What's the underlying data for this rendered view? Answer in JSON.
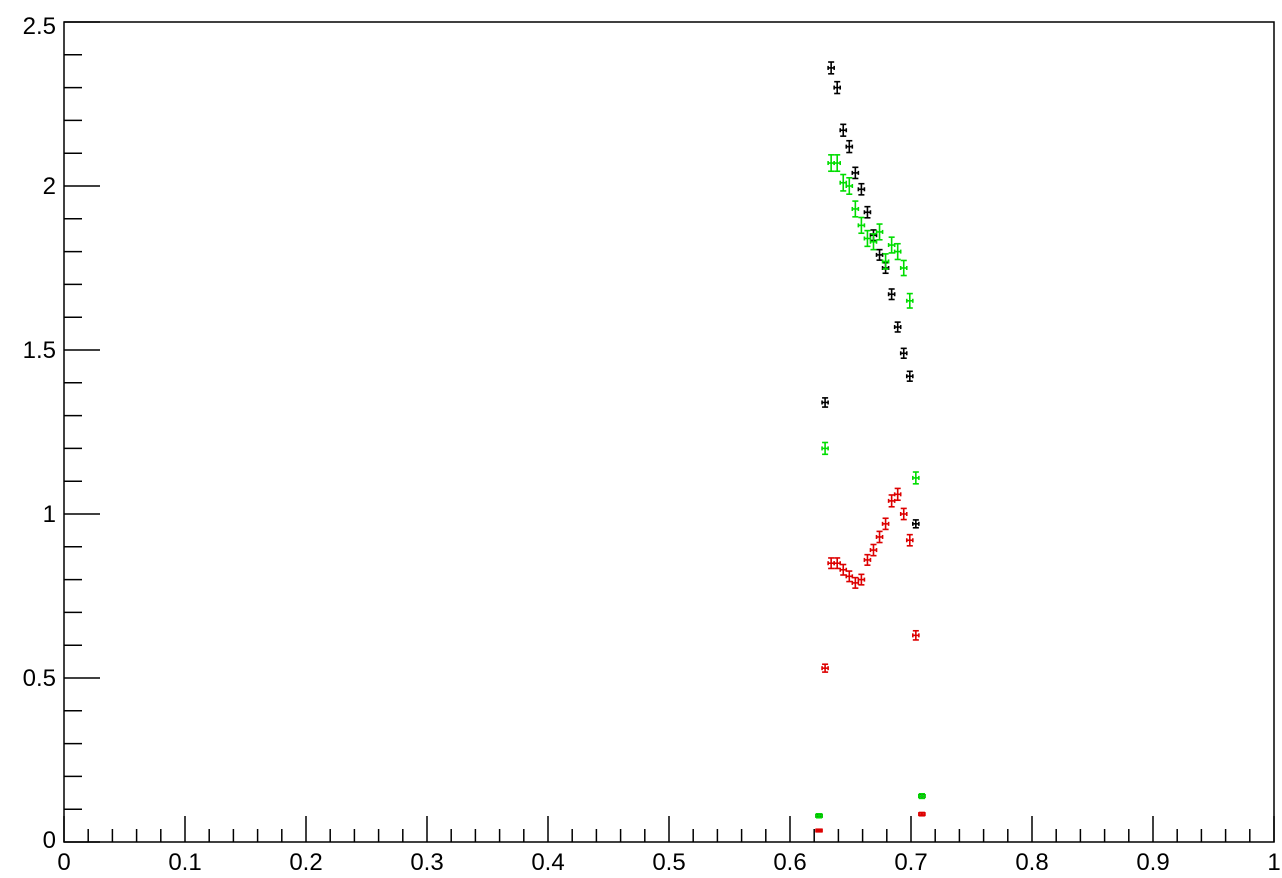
{
  "chart_data": {
    "type": "scatter",
    "title": "",
    "xlabel": "",
    "ylabel": "",
    "xlim": [
      0,
      1
    ],
    "ylim": [
      0,
      2.5
    ],
    "grid": false,
    "legend": "none",
    "x_ticks": [
      "0",
      "0.1",
      "0.2",
      "0.3",
      "0.4",
      "0.5",
      "0.6",
      "0.7",
      "0.8",
      "0.9",
      "1"
    ],
    "y_ticks": [
      "0",
      "0.5",
      "1",
      "1.5",
      "2",
      "2.5"
    ],
    "series": [
      {
        "color": "#000000",
        "x": [
          0.624,
          0.629,
          0.634,
          0.639,
          0.644,
          0.649,
          0.654,
          0.659,
          0.664,
          0.669,
          0.674,
          0.679,
          0.684,
          0.689,
          0.694,
          0.699,
          0.704,
          0.709
        ],
        "y": [
          0.08,
          1.34,
          2.36,
          2.3,
          2.17,
          2.12,
          2.04,
          1.99,
          1.92,
          1.85,
          1.79,
          1.75,
          1.67,
          1.57,
          1.49,
          1.42,
          0.97,
          0.14
        ],
        "yerr": [
          0.005,
          0.014,
          0.018,
          0.018,
          0.018,
          0.018,
          0.017,
          0.017,
          0.017,
          0.016,
          0.016,
          0.016,
          0.016,
          0.015,
          0.015,
          0.015,
          0.012,
          0.006
        ]
      },
      {
        "color": "#00dd00",
        "x": [
          0.624,
          0.629,
          0.634,
          0.639,
          0.644,
          0.649,
          0.654,
          0.659,
          0.664,
          0.669,
          0.674,
          0.679,
          0.684,
          0.689,
          0.694,
          0.699,
          0.704,
          0.709
        ],
        "y": [
          0.08,
          1.2,
          2.07,
          2.07,
          2.01,
          2.0,
          1.93,
          1.88,
          1.84,
          1.83,
          1.86,
          1.77,
          1.82,
          1.8,
          1.75,
          1.65,
          1.11,
          0.14
        ],
        "yerr": [
          0.006,
          0.018,
          0.025,
          0.025,
          0.025,
          0.025,
          0.024,
          0.024,
          0.024,
          0.024,
          0.024,
          0.023,
          0.024,
          0.024,
          0.023,
          0.022,
          0.018,
          0.007
        ]
      },
      {
        "color": "#dd0000",
        "x": [
          0.624,
          0.629,
          0.634,
          0.639,
          0.644,
          0.649,
          0.654,
          0.659,
          0.664,
          0.669,
          0.674,
          0.679,
          0.684,
          0.689,
          0.694,
          0.699,
          0.704,
          0.709
        ],
        "y": [
          0.035,
          0.53,
          0.85,
          0.85,
          0.83,
          0.81,
          0.79,
          0.8,
          0.86,
          0.89,
          0.93,
          0.97,
          1.04,
          1.06,
          1.0,
          0.92,
          0.63,
          0.085
        ],
        "yerr": [
          0.004,
          0.012,
          0.016,
          0.016,
          0.016,
          0.016,
          0.016,
          0.016,
          0.016,
          0.017,
          0.017,
          0.017,
          0.018,
          0.018,
          0.017,
          0.017,
          0.014,
          0.005
        ]
      }
    ]
  }
}
